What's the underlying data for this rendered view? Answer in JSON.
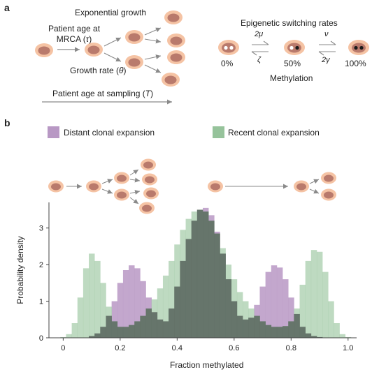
{
  "panel_a": {
    "letter": "a",
    "exp_growth": "Exponential growth",
    "mrca_line1": "Patient age at",
    "mrca_line2": "MRCA (",
    "mrca_sym": "τ",
    "mrca_close": ")",
    "growth_rate": "Growth rate (",
    "growth_sym": "θ",
    "growth_close": ")",
    "sampling": "Patient age at sampling (",
    "sampling_sym": "T",
    "sampling_close": ")",
    "switching_title": "Epigenetic switching rates",
    "rate_2mu": "2μ",
    "rate_zeta": "ζ",
    "rate_nu": "ν",
    "rate_2gamma": "2γ",
    "state_0": "0%",
    "state_50": "50%",
    "state_100": "100%",
    "methylation": "Methylation"
  },
  "panel_b": {
    "letter": "b"
  },
  "colors": {
    "distant": "#b898c4",
    "recent": "#96c39b",
    "overlap": "#5f6e64",
    "cell_outer": "#f5c3a4",
    "cell_inner": "#b97a6c"
  },
  "chart_data": {
    "type": "area",
    "xlabel": "Fraction methylated",
    "ylabel": "Probability density",
    "xlim": [
      -0.05,
      1.03
    ],
    "ylim": [
      0,
      3.7
    ],
    "xticks": [
      "0",
      "0.2",
      "0.4",
      "0.6",
      "0.8",
      "1.0"
    ],
    "yticks": [
      "0",
      "1",
      "2",
      "3"
    ],
    "grid": false,
    "legend_position": "top",
    "series": [
      {
        "name": "Distant clonal expansion",
        "color": "#b898c4",
        "x": [
          0.1,
          0.12,
          0.14,
          0.16,
          0.18,
          0.2,
          0.22,
          0.24,
          0.26,
          0.28,
          0.3,
          0.32,
          0.34,
          0.36,
          0.38,
          0.4,
          0.42,
          0.44,
          0.46,
          0.48,
          0.5,
          0.52,
          0.54,
          0.56,
          0.58,
          0.6,
          0.62,
          0.64,
          0.66,
          0.68,
          0.7,
          0.72,
          0.74,
          0.76,
          0.78,
          0.8,
          0.82,
          0.84,
          0.86,
          0.88,
          0.9
        ],
        "values": [
          0.05,
          0.12,
          0.3,
          0.6,
          1.0,
          1.5,
          1.85,
          1.98,
          1.9,
          1.55,
          1.1,
          0.7,
          0.5,
          0.45,
          0.8,
          1.4,
          2.1,
          2.7,
          3.2,
          3.5,
          3.55,
          3.35,
          2.9,
          2.3,
          1.6,
          1.0,
          0.6,
          0.5,
          0.55,
          0.9,
          1.4,
          1.8,
          1.98,
          1.92,
          1.6,
          1.1,
          0.65,
          0.3,
          0.12,
          0.05,
          0.02
        ]
      },
      {
        "name": "Recent clonal expansion",
        "color": "#96c39b",
        "x": [
          0.0,
          0.02,
          0.04,
          0.06,
          0.08,
          0.1,
          0.12,
          0.14,
          0.16,
          0.18,
          0.2,
          0.22,
          0.24,
          0.26,
          0.28,
          0.3,
          0.32,
          0.34,
          0.36,
          0.38,
          0.4,
          0.42,
          0.44,
          0.46,
          0.48,
          0.5,
          0.52,
          0.54,
          0.56,
          0.58,
          0.6,
          0.62,
          0.64,
          0.66,
          0.68,
          0.7,
          0.72,
          0.74,
          0.76,
          0.78,
          0.8,
          0.82,
          0.84,
          0.86,
          0.88,
          0.9,
          0.92,
          0.94,
          0.96,
          0.98,
          1.0
        ],
        "values": [
          0.02,
          0.1,
          0.4,
          1.1,
          1.9,
          2.3,
          2.1,
          1.5,
          0.85,
          0.45,
          0.3,
          0.3,
          0.35,
          0.45,
          0.6,
          0.8,
          1.05,
          1.35,
          1.7,
          2.1,
          2.55,
          2.95,
          3.25,
          3.45,
          3.5,
          3.45,
          3.2,
          2.85,
          2.45,
          2.0,
          1.6,
          1.25,
          1.0,
          0.8,
          0.6,
          0.45,
          0.35,
          0.3,
          0.3,
          0.32,
          0.45,
          0.8,
          1.45,
          2.1,
          2.4,
          2.35,
          1.8,
          1.0,
          0.4,
          0.1,
          0.02
        ]
      }
    ]
  }
}
